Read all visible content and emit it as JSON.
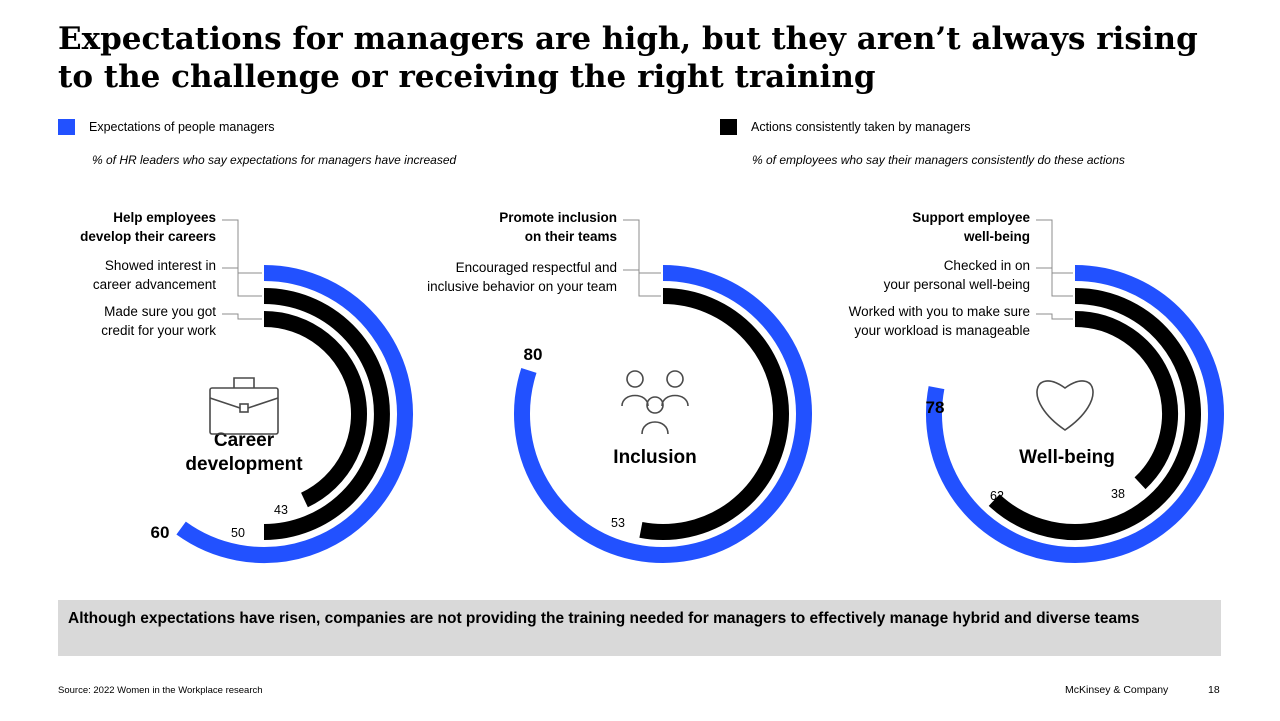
{
  "title": "Expectations for managers are high, but they aren’t always rising to the challenge or receiving the right training",
  "legend": {
    "left_label": "Expectations of people managers",
    "left_note": "% of HR leaders who say expectations for managers have increased",
    "right_label": "Actions consistently taken by managers",
    "right_note": "% of employees who say their managers consistently do these actions"
  },
  "colors": {
    "expectations": "#2251ff",
    "actions": "#000000"
  },
  "chart_data": [
    {
      "type": "radial-bar",
      "center_label": [
        "Career",
        "development"
      ],
      "icon": "briefcase-icon",
      "expectation": {
        "label": [
          "Help employees",
          "develop their careers"
        ],
        "value": 60
      },
      "actions": [
        {
          "label": [
            "Showed interest in",
            "career advancement"
          ],
          "value": 50
        },
        {
          "label": [
            "Made sure you got",
            "credit for your work"
          ],
          "value": 43
        }
      ]
    },
    {
      "type": "radial-bar",
      "center_label": [
        "Inclusion"
      ],
      "icon": "people-group-icon",
      "expectation": {
        "label": [
          "Promote inclusion",
          "on their teams"
        ],
        "value": 80
      },
      "actions": [
        {
          "label": [
            "Encouraged respectful and",
            "inclusive behavior on your team"
          ],
          "value": 53
        }
      ]
    },
    {
      "type": "radial-bar",
      "center_label": [
        "Well-being"
      ],
      "icon": "heart-icon",
      "expectation": {
        "label": [
          "Support employee",
          "well-being"
        ],
        "value": 78
      },
      "actions": [
        {
          "label": [
            "Checked in on",
            "your personal well-being"
          ],
          "value": 62
        },
        {
          "label": [
            "Worked with you to make sure",
            "your workload is manageable"
          ],
          "value": 38
        }
      ]
    }
  ],
  "takeaway": "Although expectations have risen, companies are not providing the training needed for managers to effectively manage hybrid and diverse teams",
  "footer": {
    "source": "Source: 2022 Women in the Workplace research",
    "brand": "McKinsey & Company",
    "page": "18"
  }
}
